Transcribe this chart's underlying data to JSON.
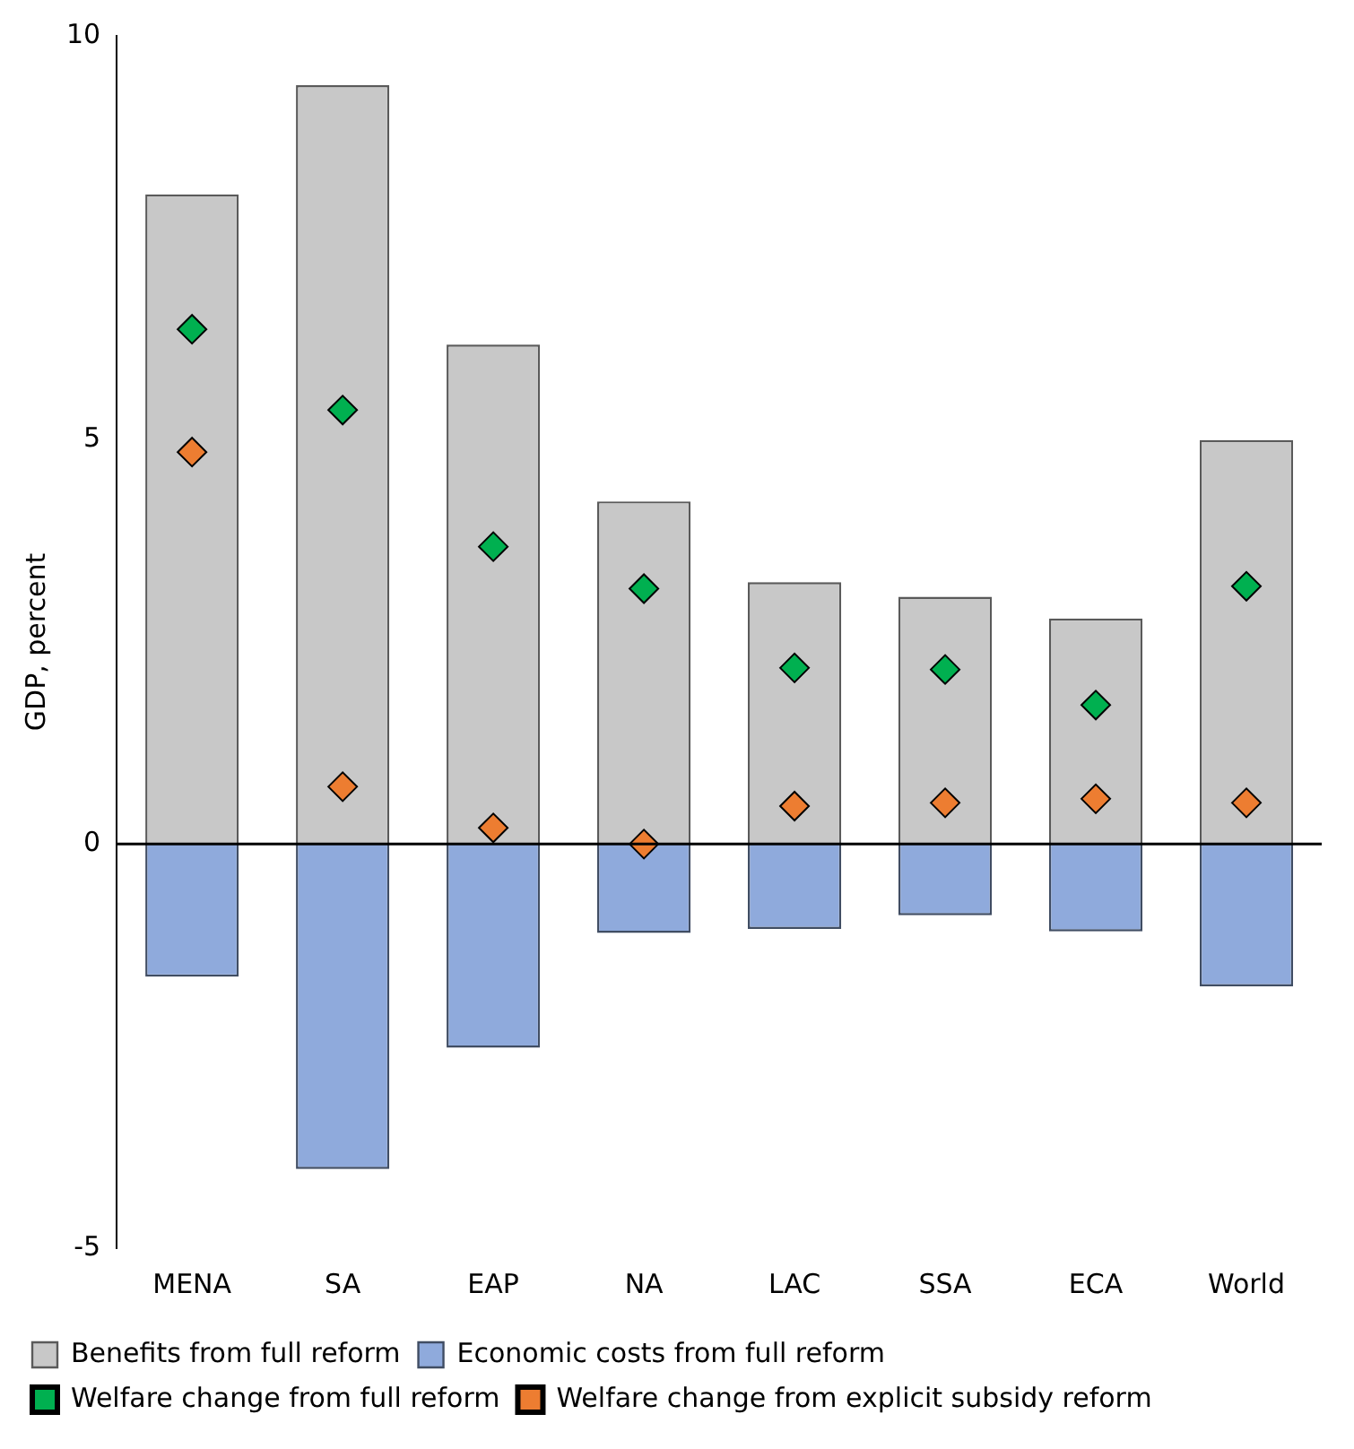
{
  "chart_data": {
    "type": "bar",
    "ylabel": "GDP, percent",
    "categories": [
      "MENA",
      "SA",
      "EAP",
      "NA",
      "LAC",
      "SSA",
      "ECA",
      "World"
    ],
    "stacked": true,
    "series": [
      {
        "name": "Benefits from full reform",
        "color": "#c8c8c8",
        "values": [
          8.04,
          9.39,
          6.18,
          4.24,
          3.24,
          3.06,
          2.79,
          5.0
        ]
      },
      {
        "name": "Economic costs from full reform",
        "color": "#8faadc",
        "values": [
          -1.64,
          -4.02,
          -2.52,
          -1.1,
          -1.05,
          -0.88,
          -1.08,
          -1.76
        ]
      },
      {
        "name": "Welfare change from full reform",
        "type": "scatter",
        "marker": "diamond",
        "color": "#00b050",
        "x": [
          "MENA",
          "SA",
          "EAP",
          "NA",
          "LAC",
          "SSA",
          "ECA",
          "World"
        ],
        "values": [
          6.37,
          5.37,
          3.68,
          3.16,
          2.18,
          2.16,
          1.72,
          3.19
        ]
      },
      {
        "name": "Welfare change from explicit subsidy reform",
        "type": "scatter",
        "marker": "diamond",
        "color": "#ed7d31",
        "x": [
          "MENA",
          "SA",
          "EAP",
          "NA",
          "LAC",
          "SSA",
          "ECA",
          "World"
        ],
        "values": [
          4.85,
          0.71,
          0.2,
          0.0,
          0.47,
          0.51,
          0.56,
          0.51
        ]
      }
    ],
    "ylim": [
      -5,
      10
    ],
    "yticks": [
      -5,
      0,
      5,
      10
    ],
    "ref_lines": [
      {
        "axis": "y",
        "value": 0,
        "color": "#000000"
      }
    ],
    "grid": false,
    "legend": "bottom"
  }
}
